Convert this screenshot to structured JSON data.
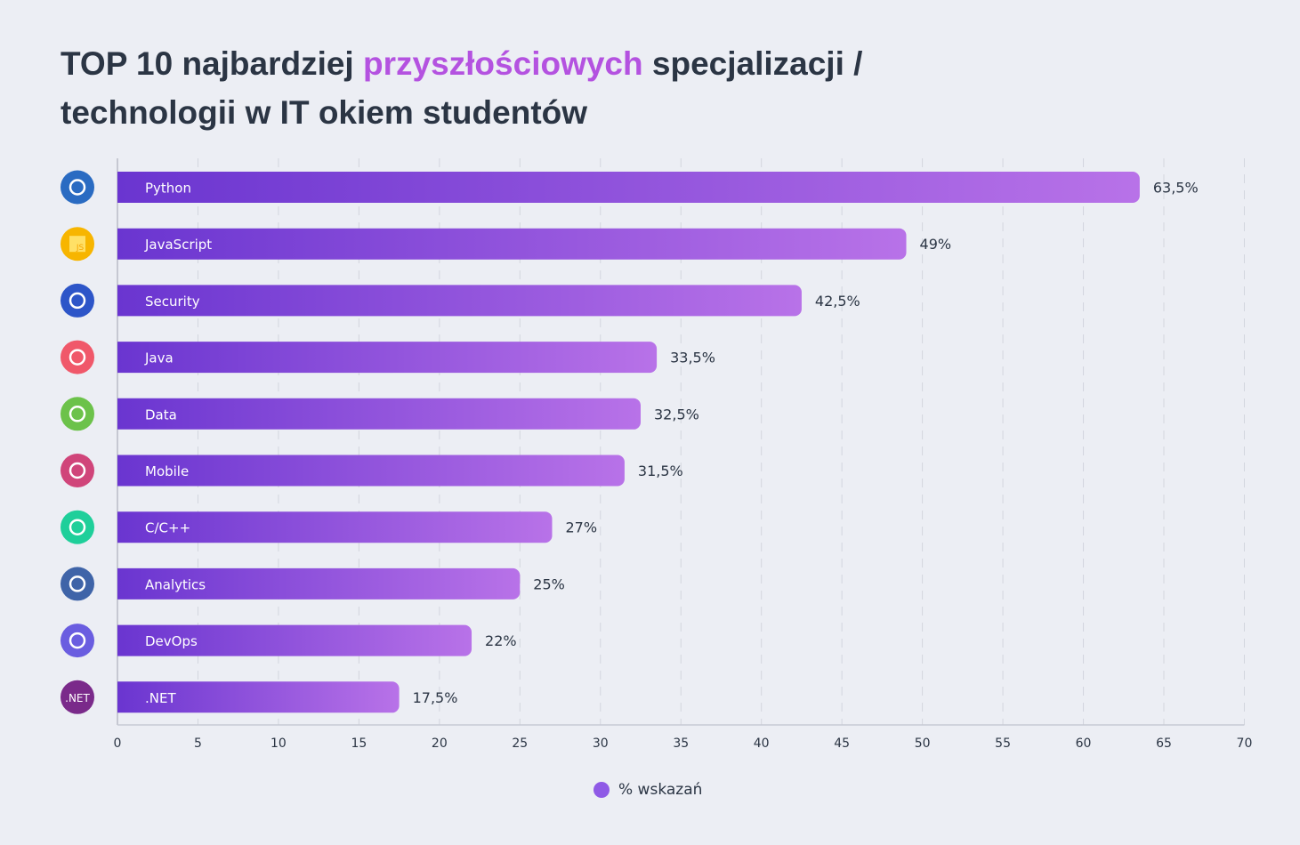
{
  "title": {
    "part1": "TOP 10 najbardziej ",
    "highlight": "przyszłościowych",
    "part2": " specjalizacji /",
    "line2": "technologii w IT okiem studentów"
  },
  "colors": {
    "bar_start": "#6a35d0",
    "bar_end": "#b872e8",
    "highlight": "#b452e0",
    "legend": "#8f5ae6"
  },
  "chart_data": {
    "type": "bar",
    "orientation": "horizontal",
    "categories": [
      "Python",
      "JavaScript",
      "Security",
      "Java",
      "Data",
      "Mobile",
      "C/C++",
      "Analytics",
      "DevOps",
      ".NET"
    ],
    "series": [
      {
        "name": "% wskazań",
        "values": [
          63.5,
          49,
          42.5,
          33.5,
          32.5,
          31.5,
          27,
          25,
          22,
          17.5
        ]
      }
    ],
    "data_labels": [
      "63,5%",
      "49%",
      "42,5%",
      "33,5%",
      "32,5%",
      "31,5%",
      "27%",
      "25%",
      "22%",
      "17,5%"
    ],
    "icons": [
      {
        "name": "python-icon",
        "color": "#2a6bc2"
      },
      {
        "name": "javascript-icon",
        "color": "#f7b500",
        "text": "JS"
      },
      {
        "name": "shield-icon",
        "color": "#2d55c8"
      },
      {
        "name": "java-icon",
        "color": "#f0586a"
      },
      {
        "name": "database-icon",
        "color": "#6cc24a"
      },
      {
        "name": "mobile-icon",
        "color": "#d0457a"
      },
      {
        "name": "cpp-icon",
        "color": "#1fcf9a"
      },
      {
        "name": "analytics-icon",
        "color": "#3f64a8"
      },
      {
        "name": "devops-icon",
        "color": "#6a5de0"
      },
      {
        "name": "dotnet-icon",
        "color": "#7a2a8a",
        "text": ".NET"
      }
    ],
    "xlim": [
      0,
      70
    ],
    "xticks": [
      0,
      5,
      10,
      15,
      20,
      25,
      30,
      35,
      40,
      45,
      50,
      55,
      60,
      65,
      70
    ],
    "grid": true,
    "legend": "bottom"
  },
  "legend": {
    "label": "% wskazań"
  }
}
